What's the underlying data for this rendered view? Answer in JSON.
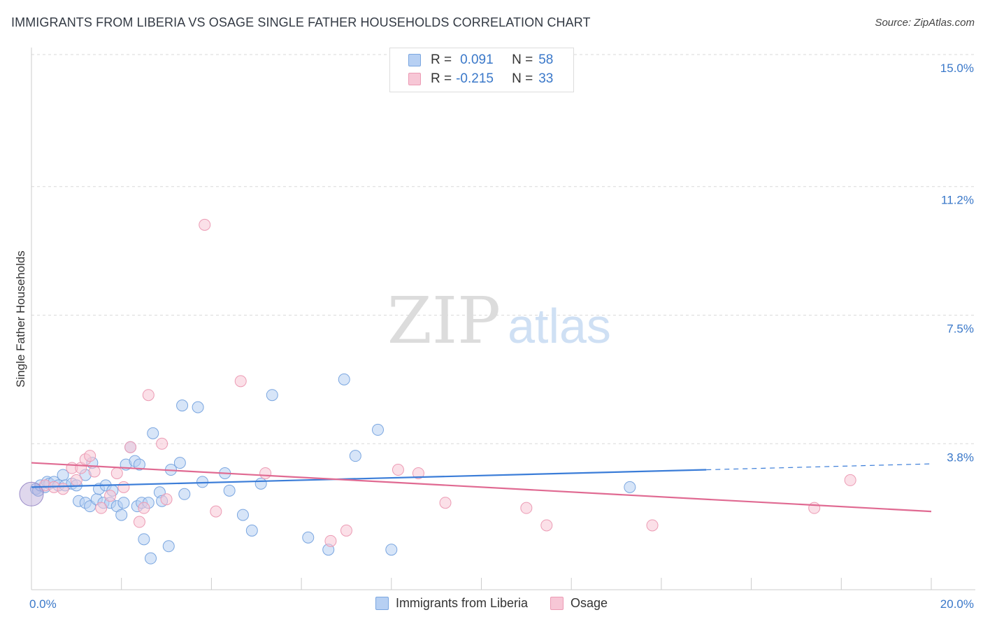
{
  "chart_data": {
    "type": "scatter",
    "title": "IMMIGRANTS FROM LIBERIA VS OSAGE SINGLE FATHER HOUSEHOLDS CORRELATION CHART",
    "source": "Source: ZipAtlas.com",
    "ylabel": "Single Father Households",
    "xlabel": "",
    "xlim": [
      0,
      20
    ],
    "ylim": [
      0,
      15
    ],
    "x_tick_labels": {
      "min": "0.0%",
      "max": "20.0%"
    },
    "y_ticks": [
      {
        "value": 3.8,
        "label": "3.8%"
      },
      {
        "value": 7.5,
        "label": "7.5%"
      },
      {
        "value": 11.2,
        "label": "11.2%"
      },
      {
        "value": 15.0,
        "label": "15.0%"
      }
    ],
    "watermark": {
      "part1": "ZIP",
      "part2": "atlas"
    },
    "legend": [
      {
        "r_label": "R =",
        "r_value": "0.091",
        "n_label": "N =",
        "n_value": "58"
      },
      {
        "r_label": "R =",
        "r_value": "-0.215",
        "n_label": "N =",
        "n_value": "33"
      }
    ],
    "series": [
      {
        "name": "Immigrants from Liberia",
        "color": "#7aa6e0",
        "fill": "#b7d0f3",
        "line_color": "#3b7dd8",
        "trend": {
          "x0": 0,
          "y0": 2.55,
          "x1": 15,
          "y1": 3.05,
          "dash_to_x": 20,
          "dash_to_y": 3.22
        },
        "points": [
          [
            0.1,
            2.5
          ],
          [
            0.15,
            2.45
          ],
          [
            0.2,
            2.6
          ],
          [
            0.3,
            2.55
          ],
          [
            0.35,
            2.7
          ],
          [
            0.4,
            2.65
          ],
          [
            0.5,
            2.7
          ],
          [
            0.6,
            2.6
          ],
          [
            0.7,
            2.9
          ],
          [
            0.75,
            2.6
          ],
          [
            0.9,
            2.65
          ],
          [
            1.0,
            2.6
          ],
          [
            1.05,
            2.15
          ],
          [
            1.2,
            2.1
          ],
          [
            1.2,
            2.9
          ],
          [
            1.3,
            2.0
          ],
          [
            1.35,
            3.25
          ],
          [
            1.45,
            2.2
          ],
          [
            1.5,
            2.5
          ],
          [
            1.6,
            2.1
          ],
          [
            1.65,
            2.6
          ],
          [
            1.75,
            2.1
          ],
          [
            1.8,
            2.45
          ],
          [
            1.9,
            2.0
          ],
          [
            2.0,
            1.75
          ],
          [
            2.05,
            2.1
          ],
          [
            2.1,
            3.2
          ],
          [
            2.2,
            3.7
          ],
          [
            2.3,
            3.3
          ],
          [
            2.35,
            2.0
          ],
          [
            2.4,
            3.2
          ],
          [
            2.45,
            2.1
          ],
          [
            2.5,
            1.05
          ],
          [
            2.6,
            2.1
          ],
          [
            2.65,
            0.5
          ],
          [
            2.7,
            4.1
          ],
          [
            2.85,
            2.4
          ],
          [
            2.9,
            2.15
          ],
          [
            3.05,
            0.85
          ],
          [
            3.1,
            3.05
          ],
          [
            3.3,
            3.25
          ],
          [
            3.35,
            4.9
          ],
          [
            3.4,
            2.35
          ],
          [
            3.7,
            4.85
          ],
          [
            3.8,
            2.7
          ],
          [
            4.3,
            2.95
          ],
          [
            4.4,
            2.45
          ],
          [
            4.7,
            1.75
          ],
          [
            4.9,
            1.3
          ],
          [
            5.1,
            2.65
          ],
          [
            5.35,
            5.2
          ],
          [
            6.15,
            1.1
          ],
          [
            6.6,
            0.75
          ],
          [
            6.95,
            5.65
          ],
          [
            7.2,
            3.45
          ],
          [
            7.7,
            4.2
          ],
          [
            8.0,
            0.75
          ],
          [
            13.3,
            2.55
          ]
        ]
      },
      {
        "name": "Osage",
        "color": "#ec9bb4",
        "fill": "#f7c7d6",
        "line_color": "#e06a92",
        "trend": {
          "x0": 0,
          "y0": 3.25,
          "x1": 20,
          "y1": 1.85
        },
        "points": [
          [
            0.3,
            2.6
          ],
          [
            0.5,
            2.55
          ],
          [
            0.7,
            2.5
          ],
          [
            0.9,
            3.1
          ],
          [
            1.0,
            2.75
          ],
          [
            1.1,
            3.1
          ],
          [
            1.2,
            3.35
          ],
          [
            1.3,
            3.45
          ],
          [
            1.4,
            3.0
          ],
          [
            1.55,
            1.95
          ],
          [
            1.75,
            2.3
          ],
          [
            1.9,
            2.95
          ],
          [
            2.05,
            2.55
          ],
          [
            2.2,
            3.7
          ],
          [
            2.4,
            1.55
          ],
          [
            2.5,
            1.95
          ],
          [
            2.6,
            5.2
          ],
          [
            2.9,
            3.8
          ],
          [
            3.0,
            2.2
          ],
          [
            3.85,
            10.1
          ],
          [
            4.1,
            1.85
          ],
          [
            4.65,
            5.6
          ],
          [
            5.2,
            2.95
          ],
          [
            6.65,
            1.0
          ],
          [
            7.0,
            1.3
          ],
          [
            8.15,
            3.05
          ],
          [
            8.6,
            2.95
          ],
          [
            9.2,
            2.1
          ],
          [
            11.0,
            1.95
          ],
          [
            11.45,
            1.45
          ],
          [
            13.8,
            1.45
          ],
          [
            17.4,
            1.95
          ],
          [
            18.2,
            2.75
          ]
        ]
      }
    ]
  }
}
